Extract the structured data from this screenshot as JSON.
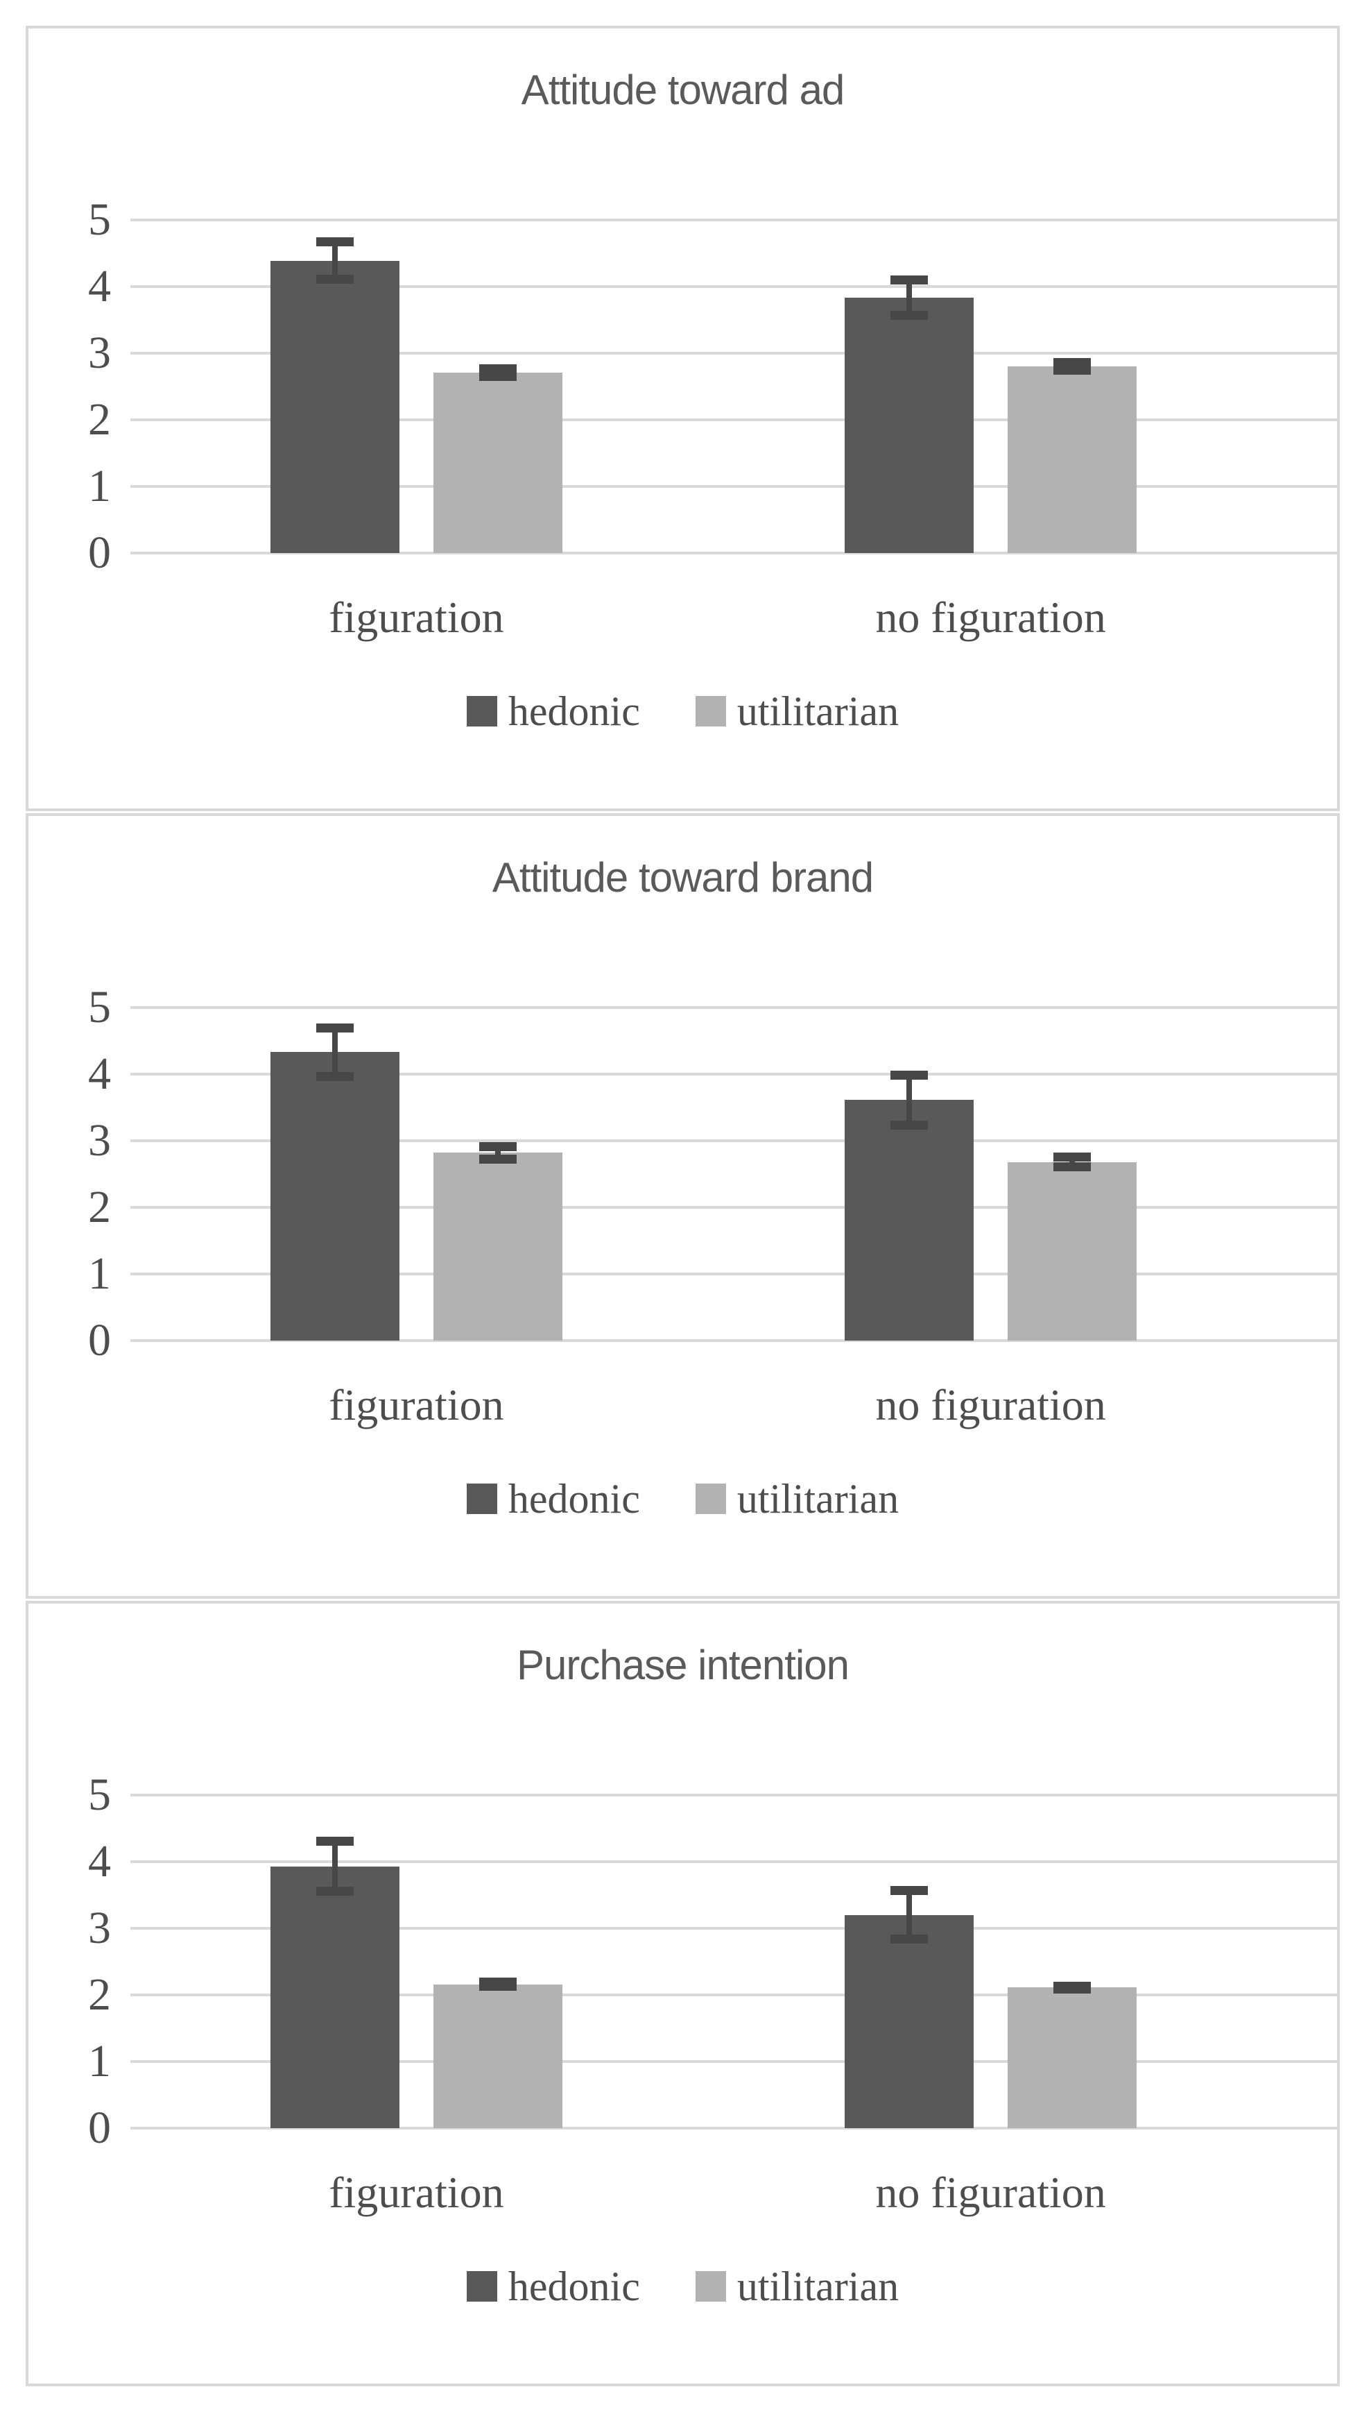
{
  "colors": {
    "hedonic": "#595959",
    "utilitarian": "#b2b2b2",
    "error_bar": "#474747",
    "gridline": "#d9d9d9",
    "panel_border": "#d9d9d9",
    "title_text": "#5a5a5a",
    "label_text": "#4d4d4d"
  },
  "legend": {
    "items": [
      {
        "label": "hedonic",
        "color": "#595959"
      },
      {
        "label": "utilitarian",
        "color": "#b2b2b2"
      }
    ]
  },
  "chart_data": [
    {
      "type": "bar",
      "title": "Attitude toward ad",
      "categories": [
        "figuration",
        "no figuration"
      ],
      "series": [
        {
          "name": "hedonic",
          "color": "#595959",
          "values": [
            4.39,
            3.83
          ],
          "errors": [
            0.29,
            0.27
          ]
        },
        {
          "name": "utilitarian",
          "color": "#b2b2b2",
          "values": [
            2.71,
            2.8
          ],
          "errors": [
            0.06,
            0.06
          ]
        }
      ],
      "ylim": [
        0,
        5
      ],
      "yticks": [
        5,
        4,
        3,
        2,
        1,
        0
      ],
      "grid": true,
      "legend_position": "bottom"
    },
    {
      "type": "bar",
      "title": "Attitude toward brand",
      "categories": [
        "figuration",
        "no figuration"
      ],
      "series": [
        {
          "name": "hedonic",
          "color": "#595959",
          "values": [
            4.33,
            3.61
          ],
          "errors": [
            0.37,
            0.38
          ]
        },
        {
          "name": "utilitarian",
          "color": "#b2b2b2",
          "values": [
            2.82,
            2.68
          ],
          "errors": [
            0.1,
            0.08
          ]
        }
      ],
      "ylim": [
        0,
        5
      ],
      "yticks": [
        5,
        4,
        3,
        2,
        1,
        0
      ],
      "grid": true,
      "legend_position": "bottom"
    },
    {
      "type": "bar",
      "title": "Purchase intention",
      "categories": [
        "figuration",
        "no figuration"
      ],
      "series": [
        {
          "name": "hedonic",
          "color": "#595959",
          "values": [
            3.93,
            3.2
          ],
          "errors": [
            0.38,
            0.37
          ]
        },
        {
          "name": "utilitarian",
          "color": "#b2b2b2",
          "values": [
            2.16,
            2.11
          ],
          "errors": [
            0.04,
            0.03
          ]
        }
      ],
      "ylim": [
        0,
        5
      ],
      "yticks": [
        5,
        4,
        3,
        2,
        1,
        0
      ],
      "grid": true,
      "legend_position": "bottom"
    }
  ]
}
